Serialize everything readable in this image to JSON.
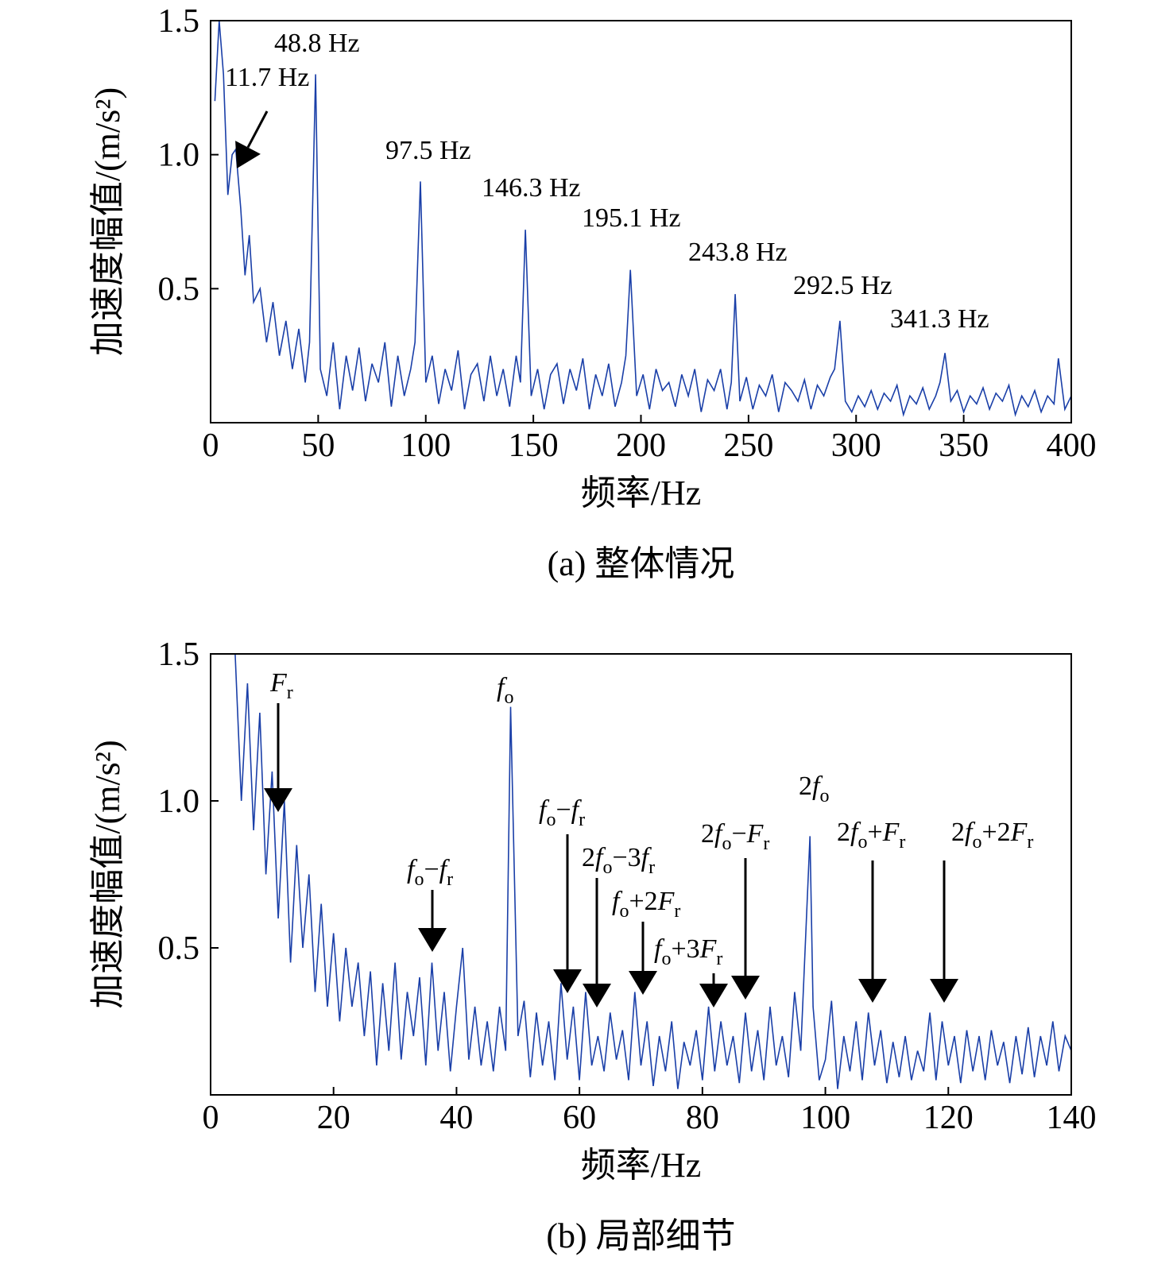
{
  "chart_data": [
    {
      "type": "line",
      "caption": "(a) 整体情况",
      "xlabel": "频率/Hz",
      "ylabel": "加速度幅值/(m/s²)",
      "color": "#1a3fa8",
      "xlim": [
        0,
        400
      ],
      "ylim": [
        0,
        1.5
      ],
      "xticks": [
        0,
        50,
        100,
        150,
        200,
        250,
        300,
        350,
        400
      ],
      "yticks": [
        0.5,
        {
          "value": 1,
          "label": "1.0"
        },
        1.5
      ],
      "x": [
        2,
        4,
        6,
        8,
        10,
        11.7,
        14,
        16,
        18,
        20,
        23,
        26,
        29,
        32,
        35,
        38,
        41,
        44,
        46,
        48.8,
        51,
        54,
        57,
        60,
        63,
        66,
        69,
        72,
        75,
        78,
        81,
        84,
        87,
        90,
        93,
        95,
        97.5,
        100,
        103,
        106,
        109,
        112,
        115,
        118,
        121,
        124,
        127,
        130,
        133,
        136,
        139,
        142,
        144,
        146.3,
        149,
        152,
        155,
        158,
        161,
        164,
        167,
        170,
        173,
        176,
        179,
        182,
        185,
        188,
        191,
        193,
        195.1,
        198,
        201,
        204,
        207,
        210,
        213,
        216,
        219,
        222,
        225,
        228,
        231,
        234,
        237,
        240,
        242,
        243.8,
        246,
        249,
        252,
        255,
        258,
        261,
        264,
        267,
        270,
        273,
        276,
        279,
        282,
        285,
        288,
        290,
        292.5,
        295,
        298,
        301,
        304,
        307,
        310,
        313,
        316,
        319,
        322,
        325,
        328,
        331,
        334,
        337,
        339,
        341.3,
        344,
        347,
        350,
        353,
        356,
        359,
        362,
        365,
        368,
        371,
        374,
        377,
        380,
        383,
        386,
        389,
        392,
        394,
        397,
        400
      ],
      "values": [
        1.2,
        1.5,
        1.3,
        0.85,
        1.0,
        1.02,
        0.8,
        0.55,
        0.7,
        0.45,
        0.5,
        0.3,
        0.45,
        0.25,
        0.38,
        0.2,
        0.35,
        0.15,
        0.3,
        1.3,
        0.2,
        0.1,
        0.3,
        0.05,
        0.25,
        0.12,
        0.28,
        0.08,
        0.22,
        0.15,
        0.3,
        0.06,
        0.25,
        0.1,
        0.2,
        0.3,
        0.9,
        0.15,
        0.25,
        0.07,
        0.2,
        0.12,
        0.27,
        0.05,
        0.18,
        0.22,
        0.08,
        0.25,
        0.1,
        0.2,
        0.06,
        0.25,
        0.15,
        0.72,
        0.1,
        0.2,
        0.05,
        0.18,
        0.22,
        0.07,
        0.2,
        0.12,
        0.24,
        0.05,
        0.18,
        0.1,
        0.22,
        0.06,
        0.15,
        0.25,
        0.57,
        0.1,
        0.18,
        0.05,
        0.2,
        0.12,
        0.15,
        0.06,
        0.18,
        0.1,
        0.2,
        0.04,
        0.16,
        0.12,
        0.2,
        0.05,
        0.15,
        0.48,
        0.08,
        0.17,
        0.05,
        0.14,
        0.1,
        0.18,
        0.04,
        0.15,
        0.12,
        0.08,
        0.16,
        0.05,
        0.14,
        0.1,
        0.17,
        0.2,
        0.38,
        0.08,
        0.04,
        0.1,
        0.06,
        0.12,
        0.05,
        0.11,
        0.08,
        0.14,
        0.03,
        0.1,
        0.07,
        0.13,
        0.05,
        0.1,
        0.15,
        0.26,
        0.08,
        0.12,
        0.04,
        0.1,
        0.07,
        0.13,
        0.05,
        0.11,
        0.08,
        0.14,
        0.03,
        0.1,
        0.06,
        0.12,
        0.04,
        0.1,
        0.07,
        0.24,
        0.05,
        0.1
      ],
      "annotations": [
        {
          "parts": [
            {
              "text": "48.8 Hz"
            }
          ]
        },
        {
          "parts": [
            {
              "text": "11.7 Hz"
            }
          ]
        },
        {
          "parts": [
            {
              "text": "97.5 Hz"
            }
          ]
        },
        {
          "parts": [
            {
              "text": "146.3 Hz"
            }
          ]
        },
        {
          "parts": [
            {
              "text": "195.1 Hz"
            }
          ]
        },
        {
          "parts": [
            {
              "text": "243.8 Hz"
            }
          ]
        },
        {
          "parts": [
            {
              "text": "292.5 Hz"
            }
          ]
        },
        {
          "parts": [
            {
              "text": "341.3 Hz"
            }
          ]
        }
      ]
    },
    {
      "type": "line",
      "caption": "(b) 局部细节",
      "xlabel": "频率/Hz",
      "ylabel": "加速度幅值/(m/s²)",
      "color": "#1a3fa8",
      "xlim": [
        0,
        140
      ],
      "ylim": [
        0,
        1.5
      ],
      "xticks": [
        0,
        20,
        40,
        60,
        80,
        100,
        120,
        140
      ],
      "yticks": [
        0.5,
        {
          "value": 1,
          "label": "1.0"
        },
        1.5
      ],
      "x": [
        4,
        5,
        6,
        7,
        8,
        9,
        10,
        11,
        12,
        13,
        14,
        15,
        16,
        17,
        18,
        19,
        20,
        21,
        22,
        23,
        24,
        25,
        26,
        27,
        28,
        29,
        30,
        31,
        32,
        33,
        34,
        35,
        36,
        37,
        38,
        39,
        40,
        41,
        42,
        43,
        44,
        45,
        46,
        47,
        48,
        48.8,
        50,
        51,
        52,
        53,
        54,
        55,
        56,
        57,
        58,
        59,
        60,
        61,
        62,
        63,
        64,
        65,
        66,
        67,
        68,
        69,
        70,
        71,
        72,
        73,
        74,
        75,
        76,
        77,
        78,
        79,
        80,
        81,
        82,
        83,
        84,
        85,
        86,
        87,
        88,
        89,
        90,
        91,
        92,
        93,
        94,
        95,
        96,
        97.5,
        98,
        99,
        100,
        101,
        102,
        103,
        104,
        105,
        106,
        107,
        108,
        109,
        110,
        111,
        112,
        113,
        114,
        115,
        116,
        117,
        118,
        119,
        120,
        121,
        122,
        123,
        124,
        125,
        126,
        127,
        128,
        129,
        130,
        131,
        132,
        133,
        134,
        135,
        136,
        137,
        138,
        139,
        140
      ],
      "values": [
        1.5,
        1.0,
        1.4,
        0.9,
        1.3,
        0.75,
        1.1,
        0.6,
        1.0,
        0.45,
        0.85,
        0.5,
        0.75,
        0.35,
        0.65,
        0.3,
        0.55,
        0.25,
        0.5,
        0.3,
        0.45,
        0.2,
        0.42,
        0.1,
        0.38,
        0.15,
        0.45,
        0.12,
        0.35,
        0.2,
        0.4,
        0.1,
        0.45,
        0.15,
        0.35,
        0.08,
        0.3,
        0.5,
        0.12,
        0.3,
        0.1,
        0.25,
        0.08,
        0.3,
        0.15,
        1.32,
        0.2,
        0.32,
        0.06,
        0.28,
        0.1,
        0.25,
        0.05,
        0.38,
        0.12,
        0.3,
        0.05,
        0.35,
        0.1,
        0.2,
        0.08,
        0.28,
        0.12,
        0.22,
        0.05,
        0.35,
        0.1,
        0.25,
        0.03,
        0.2,
        0.08,
        0.25,
        0.02,
        0.18,
        0.1,
        0.22,
        0.05,
        0.3,
        0.08,
        0.25,
        0.1,
        0.2,
        0.04,
        0.28,
        0.08,
        0.22,
        0.05,
        0.3,
        0.1,
        0.2,
        0.06,
        0.35,
        0.15,
        0.88,
        0.3,
        0.05,
        0.12,
        0.32,
        0.02,
        0.2,
        0.08,
        0.25,
        0.05,
        0.28,
        0.1,
        0.22,
        0.04,
        0.18,
        0.06,
        0.2,
        0.05,
        0.15,
        0.08,
        0.28,
        0.05,
        0.25,
        0.1,
        0.2,
        0.04,
        0.22,
        0.08,
        0.2,
        0.05,
        0.22,
        0.1,
        0.18,
        0.04,
        0.2,
        0.07,
        0.23,
        0.06,
        0.2,
        0.1,
        0.25,
        0.08,
        0.2,
        0.15
      ],
      "annotations": [
        {
          "parts": [
            {
              "text": "F",
              "italic": true
            },
            {
              "text": "r",
              "sub": true
            }
          ]
        },
        {
          "parts": [
            {
              "text": "f",
              "italic": true
            },
            {
              "text": "o",
              "sub": true
            },
            {
              "text": "−"
            },
            {
              "text": "f",
              "italic": true
            },
            {
              "text": "r",
              "sub": true
            }
          ]
        },
        {
          "parts": [
            {
              "text": "f",
              "italic": true
            },
            {
              "text": "o",
              "sub": true
            }
          ]
        },
        {
          "parts": [
            {
              "text": "f",
              "italic": true
            },
            {
              "text": "o",
              "sub": true
            },
            {
              "text": "−"
            },
            {
              "text": "f",
              "italic": true
            },
            {
              "text": "r",
              "sub": true
            }
          ]
        },
        {
          "parts": [
            {
              "text": "2"
            },
            {
              "text": "f",
              "italic": true
            },
            {
              "text": "o",
              "sub": true
            },
            {
              "text": "−3"
            },
            {
              "text": "f",
              "italic": true
            },
            {
              "text": "r",
              "sub": true
            }
          ]
        },
        {
          "parts": [
            {
              "text": "f",
              "italic": true
            },
            {
              "text": "o",
              "sub": true
            },
            {
              "text": "+2"
            },
            {
              "text": "F",
              "italic": true
            },
            {
              "text": "r",
              "sub": true
            }
          ]
        },
        {
          "parts": [
            {
              "text": "f",
              "italic": true
            },
            {
              "text": "o",
              "sub": true
            },
            {
              "text": "+3"
            },
            {
              "text": "F",
              "italic": true
            },
            {
              "text": "r",
              "sub": true
            }
          ]
        },
        {
          "parts": [
            {
              "text": "2"
            },
            {
              "text": "f",
              "italic": true
            },
            {
              "text": "o",
              "sub": true
            },
            {
              "text": "−"
            },
            {
              "text": "F",
              "italic": true
            },
            {
              "text": "r",
              "sub": true
            }
          ]
        },
        {
          "parts": [
            {
              "text": "2"
            },
            {
              "text": "f",
              "italic": true
            },
            {
              "text": "o",
              "sub": true
            }
          ]
        },
        {
          "parts": [
            {
              "text": "2"
            },
            {
              "text": "f",
              "italic": true
            },
            {
              "text": "o",
              "sub": true
            },
            {
              "text": "+"
            },
            {
              "text": "F",
              "italic": true
            },
            {
              "text": "r",
              "sub": true
            }
          ]
        },
        {
          "parts": [
            {
              "text": "2"
            },
            {
              "text": "f",
              "italic": true
            },
            {
              "text": "o",
              "sub": true
            },
            {
              "text": "+2"
            },
            {
              "text": "F",
              "italic": true
            },
            {
              "text": "r",
              "sub": true
            }
          ]
        }
      ]
    }
  ]
}
